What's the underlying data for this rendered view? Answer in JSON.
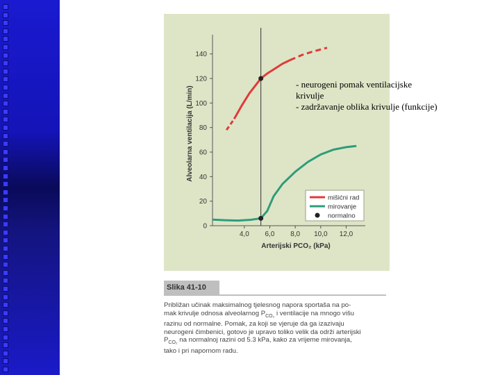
{
  "annotation": {
    "line1": "- neurogeni pomak ventilacijske",
    "line2": "krivulje",
    "line3": "- zadržavanje oblika krivulje (funkcije)"
  },
  "figure_label": "Slika 41-10",
  "caption_lines": [
    "Približan učinak maksimalnog tjelesnog napora sportaša na po-",
    "mak krivulje odnosa alveolarnog P",
    "razinu od normalne. Pomak, za koji se vjeruje da ga izazivaju",
    "neurogeni čimbenici, gotovo je upravo toliko velik da održi arterijski",
    "P",
    "tako i pri napornom radu."
  ],
  "caption": {
    "l1": "Približan učinak maksimalnog tjelesnog napora sportaša na po-",
    "l2a": "mak krivulje odnosa alveolarnog P",
    "l2sub": "CO₂",
    "l2b": " i ventilacije na mnogo višu",
    "l3": "razinu od normalne. Pomak, za koji se vjeruje da ga izazivaju",
    "l4": "neurogeni čimbenici, gotovo je upravo toliko velik da održi arterijski",
    "l5a": "P",
    "l5sub": "CO₂",
    "l5b": " na normalnoj razini od 5.3 kPa, kako za vrijeme mirovanja,",
    "l6": "tako i pri napornom radu."
  },
  "chart_data": {
    "type": "line",
    "ylabel": "Alveolarna ventilacija (L/min)",
    "xlabel": "Arterijski PCO₂ (kPa)",
    "x_ticks": [
      "4,0",
      "6,0",
      "8,0",
      "10,0",
      "12,0"
    ],
    "x_tick_values": [
      4,
      6,
      8,
      10,
      12
    ],
    "y_ticks": [
      "0",
      "20",
      "40",
      "60",
      "80",
      "100",
      "120",
      "140"
    ],
    "y_tick_values": [
      0,
      20,
      40,
      60,
      80,
      100,
      120,
      140
    ],
    "xlim": [
      1.5,
      13.5
    ],
    "ylim": [
      0,
      150
    ],
    "vertical_line_x": 5.3,
    "series": [
      {
        "name": "mišićni rad",
        "color": "#e03a3a",
        "dashed_before": {
          "x": [
            2.6,
            3.2
          ],
          "y": [
            78,
            87
          ]
        },
        "solid": {
          "x": [
            3.2,
            3.8,
            4.4,
            5.0,
            5.3,
            5.8,
            6.4,
            7.0,
            7.6
          ],
          "y": [
            87,
            98,
            108,
            116,
            120,
            124,
            128,
            132,
            135
          ]
        },
        "dashed_after": {
          "x": [
            7.6,
            8.5,
            9.4,
            10.5
          ],
          "y": [
            135,
            139,
            142,
            145
          ]
        }
      },
      {
        "name": "mirovanje",
        "color": "#2e9c7a",
        "x": [
          1.5,
          2.5,
          3.5,
          4.5,
          5.3,
          5.8,
          6.3,
          7.0,
          8.0,
          9.0,
          10.0,
          11.0,
          12.0,
          12.8
        ],
        "y": [
          5,
          4.5,
          4.2,
          4.8,
          6,
          12,
          24,
          34,
          44,
          52,
          58,
          62,
          64,
          65
        ]
      },
      {
        "name": "normalno",
        "color": "#222222",
        "points": [
          {
            "x": 5.3,
            "y": 120
          },
          {
            "x": 5.3,
            "y": 6
          }
        ]
      }
    ],
    "legend_position": "bottom-right"
  }
}
